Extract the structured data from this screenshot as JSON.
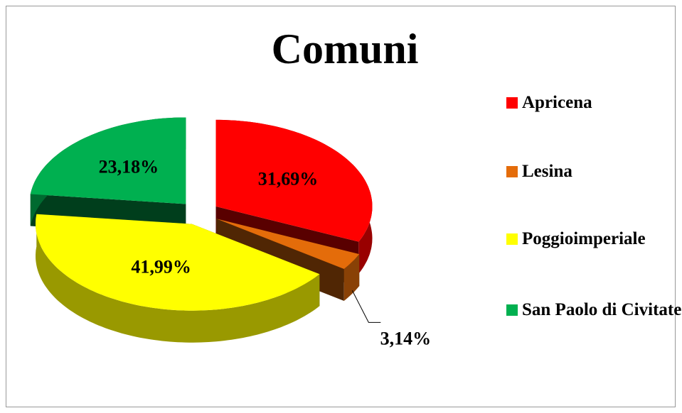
{
  "chart_data": {
    "type": "pie",
    "title": "Comuni",
    "categories": [
      "Apricena",
      "Lesina",
      "Poggioimperiale",
      "San Paolo di Civitate"
    ],
    "values": [
      31.69,
      3.14,
      41.99,
      23.18
    ],
    "value_labels": [
      "31,69%",
      "3,14%",
      "41,99%",
      "23,18%"
    ],
    "colors": [
      "#ff0000",
      "#e46c0a",
      "#ffff00",
      "#00b050"
    ],
    "legend": "right"
  }
}
